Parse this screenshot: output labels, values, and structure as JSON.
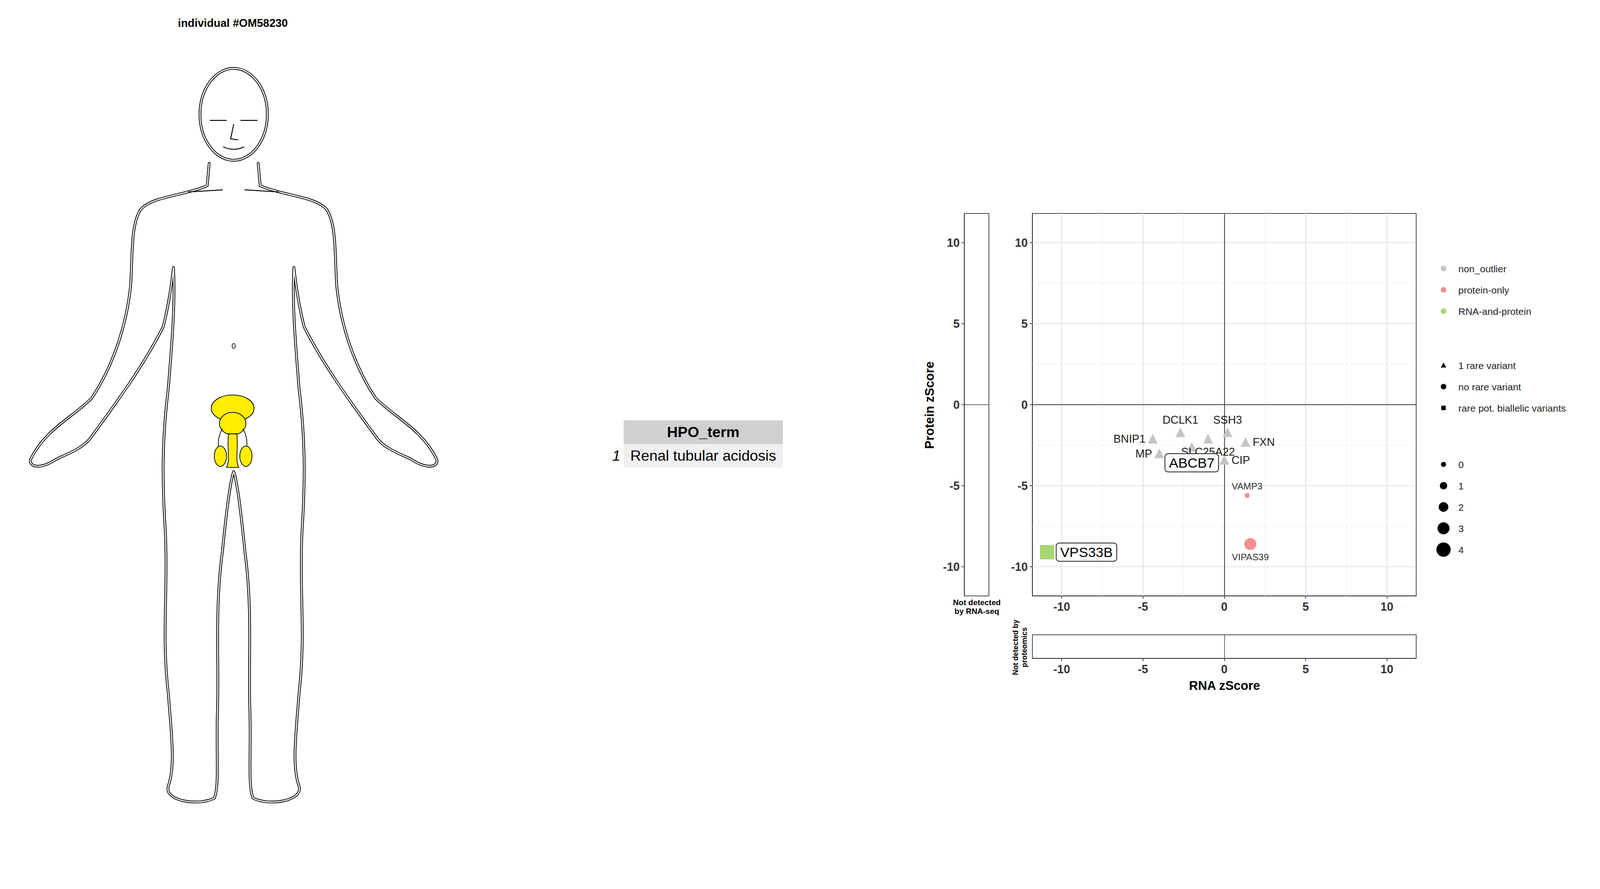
{
  "title": "individual #OM58230",
  "table": {
    "header": [
      "HPO_term"
    ],
    "rows": [
      {
        "name": "1",
        "cells": [
          "Renal tubular acidosis"
        ]
      }
    ]
  },
  "chart_data": {
    "type": "scatter",
    "x_label": "RNA zScore",
    "y_label": "Protein zScore",
    "xlim": [
      -11.8,
      11.8
    ],
    "ylim": [
      -11.8,
      11.8
    ],
    "xticks": [
      -10,
      -5,
      0,
      5,
      10
    ],
    "yticks": [
      -10,
      -5,
      0,
      5,
      10
    ],
    "grid": true,
    "hlines": [
      0
    ],
    "vlines": [
      0
    ],
    "panel_labels": {
      "left": "Not detected by RNA-seq",
      "bottom": "Not detected by proteomics"
    },
    "legend": "right",
    "color_legend": [
      {
        "name": "non_outlier",
        "color": "#c4c4c4"
      },
      {
        "name": "protein-only",
        "color": "#f29090"
      },
      {
        "name": "RNA-and-protein",
        "color": "#a8d672"
      }
    ],
    "marker_legend": [
      {
        "name": "1 rare variant",
        "marker": "triangle"
      },
      {
        "name": "no rare variant",
        "marker": "circle"
      },
      {
        "name": "rare pot. biallelic variants",
        "marker": "square"
      }
    ],
    "size_legend": [
      0,
      1,
      2,
      3,
      4
    ],
    "highlighted": [
      "VPS33B",
      "ABCB7"
    ],
    "points": [
      {
        "label": "BNIP1",
        "x": -4.4,
        "y": -2.1,
        "category": "non_outlier",
        "variant": "1 rare variant",
        "size": 2
      },
      {
        "label": "DCLK1",
        "x": -2.7,
        "y": -1.7,
        "category": "non_outlier",
        "variant": "1 rare variant",
        "size": 2
      },
      {
        "label": "SSH3",
        "x": 0.2,
        "y": -1.7,
        "category": "non_outlier",
        "variant": "1 rare variant",
        "size": 2
      },
      {
        "label": "SLC25A22",
        "x": -1.0,
        "y": -2.1,
        "category": "non_outlier",
        "variant": "1 rare variant",
        "size": 2
      },
      {
        "label": "FXN",
        "x": 1.3,
        "y": -2.3,
        "category": "non_outlier",
        "variant": "1 rare variant",
        "size": 2
      },
      {
        "label": "MP",
        "x": -4.0,
        "y": -3.0,
        "category": "non_outlier",
        "variant": "1 rare variant",
        "size": 2
      },
      {
        "label": "CIP",
        "x": 0.0,
        "y": -3.4,
        "category": "non_outlier",
        "variant": "1 rare variant",
        "size": 2
      },
      {
        "label": "ABCB7",
        "x": -2.0,
        "y": -2.6,
        "category": "non_outlier",
        "variant": "1 rare variant",
        "size": 2
      },
      {
        "label": "VAMP3",
        "x": 1.4,
        "y": -5.6,
        "category": "protein-only",
        "variant": "no rare variant",
        "size": 0
      },
      {
        "label": "VIPAS39",
        "x": 1.6,
        "y": -8.6,
        "category": "protein-only",
        "variant": "no rare variant",
        "size": 3
      },
      {
        "label": "VPS33B",
        "x": -10.9,
        "y": -9.1,
        "category": "RNA-and-protein",
        "variant": "rare pot. biallelic variants",
        "size": 4
      }
    ]
  }
}
